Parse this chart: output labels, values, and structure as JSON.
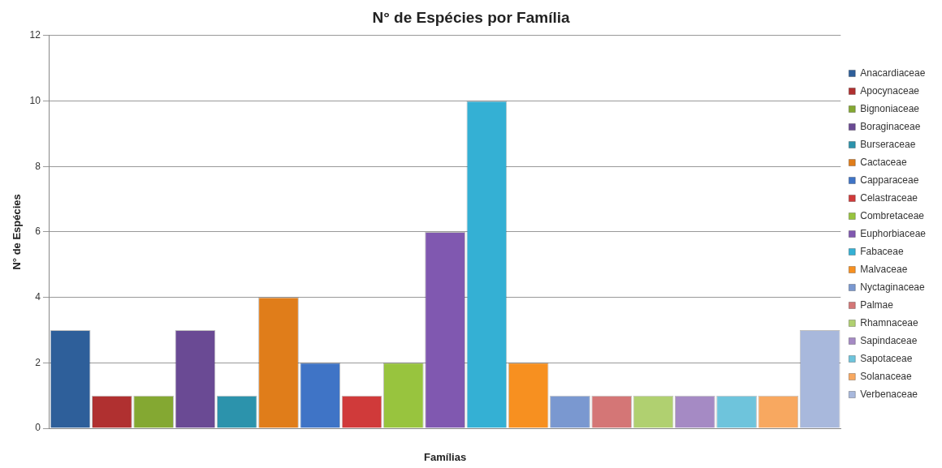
{
  "chart_data": {
    "type": "bar",
    "title": "N° de Espécies por Família",
    "xlabel": "Famílias",
    "ylabel": "N° de Espécies",
    "categories": [
      null
    ],
    "ylim": [
      0,
      12
    ],
    "yticks": [
      0,
      2,
      4,
      6,
      8,
      10,
      12
    ],
    "grid": "y",
    "legend": "right",
    "series": [
      {
        "name": "Anacardiaceae",
        "color": "#2e5f9a",
        "values": [
          3
        ]
      },
      {
        "name": "Apocynaceae",
        "color": "#b03030",
        "values": [
          1
        ]
      },
      {
        "name": "Bignoniaceae",
        "color": "#84a832",
        "values": [
          1
        ]
      },
      {
        "name": "Boraginaceae",
        "color": "#6a4a94",
        "values": [
          3
        ]
      },
      {
        "name": "Burseraceae",
        "color": "#2c93ac",
        "values": [
          1
        ]
      },
      {
        "name": "Cactaceae",
        "color": "#e07d1a",
        "values": [
          4
        ]
      },
      {
        "name": "Capparaceae",
        "color": "#3f74c6",
        "values": [
          2
        ]
      },
      {
        "name": "Celastraceae",
        "color": "#d03a3a",
        "values": [
          1
        ]
      },
      {
        "name": "Combretaceae",
        "color": "#98c43e",
        "values": [
          2
        ]
      },
      {
        "name": "Euphorbiaceae",
        "color": "#8058b0",
        "values": [
          6
        ]
      },
      {
        "name": "Fabaceae",
        "color": "#34b0d4",
        "values": [
          10
        ]
      },
      {
        "name": "Malvaceae",
        "color": "#f79020",
        "values": [
          2
        ]
      },
      {
        "name": "Nyctaginaceae",
        "color": "#7a98d0",
        "values": [
          1
        ]
      },
      {
        "name": "Palmae",
        "color": "#d47676",
        "values": [
          1
        ]
      },
      {
        "name": "Rhamnaceae",
        "color": "#b0d070",
        "values": [
          1
        ]
      },
      {
        "name": "Sapindaceae",
        "color": "#a58ac4",
        "values": [
          1
        ]
      },
      {
        "name": "Sapotaceae",
        "color": "#6ec4dc",
        "values": [
          1
        ]
      },
      {
        "name": "Solanaceae",
        "color": "#f8a860",
        "values": [
          1
        ]
      },
      {
        "name": "Verbenaceae",
        "color": "#a8b8dc",
        "values": [
          3
        ]
      }
    ]
  }
}
